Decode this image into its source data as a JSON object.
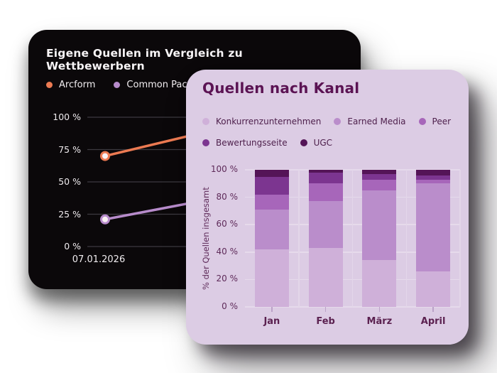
{
  "line_card": {
    "title": "Eigene Quellen im Vergleich zu Wettbewerbern",
    "x_axis_label": "07.01.2026",
    "background": "#0b080a",
    "text_color": "#f1edf0"
  },
  "bar_card": {
    "title": "Quellen nach Kanal",
    "y_axis_title": "% der Quellen insgesamt",
    "background": "#dccce4",
    "title_color": "#5b1353",
    "text_color": "#4c1e4a"
  },
  "chart_data": [
    {
      "type": "line",
      "title": "Eigene Quellen im Vergleich zu Wettbewerbern",
      "y_ticks": [
        "100 %",
        "75 %",
        "50 %",
        "25 %",
        "0 %"
      ],
      "x_tick_labels": [
        "07.01.2026"
      ],
      "ylim": [
        0,
        100
      ],
      "grid": true,
      "legend_position": "top",
      "series": [
        {
          "name": "Arcform",
          "color": "#ec7a52",
          "marker_fill": "#f8f0f2",
          "start_value_pct": 70,
          "value_at_overlap_pct": 85
        },
        {
          "name": "Common Pace",
          "color": "#b78bcb",
          "marker_fill": "#f8f0f2",
          "start_value_pct": 21,
          "value_at_overlap_pct": 33
        }
      ]
    },
    {
      "type": "bar",
      "stacked": true,
      "title": "Quellen nach Kanal",
      "categories": [
        "Jan",
        "Feb",
        "März",
        "April"
      ],
      "series": [
        {
          "name": "Konkurrenzunternehmen",
          "color": "#cfb0d9",
          "values": [
            42,
            43,
            34,
            26
          ]
        },
        {
          "name": "Earned Media",
          "color": "#ba8dcb",
          "values": [
            29,
            34,
            51,
            64
          ]
        },
        {
          "name": "Peer",
          "color": "#a766ba",
          "values": [
            11,
            13,
            8,
            3
          ]
        },
        {
          "name": "Bewertungsseite",
          "color": "#7c3590",
          "values": [
            13,
            8,
            4,
            3
          ]
        },
        {
          "name": "UGC",
          "color": "#541457",
          "values": [
            5,
            2,
            3,
            4
          ]
        }
      ],
      "ylabel": "% der Quellen insgesamt",
      "y_ticks": [
        "0 %",
        "20 %",
        "40 %",
        "60 %",
        "80 %",
        "100 %"
      ],
      "ylim": [
        0,
        100
      ],
      "grid": true,
      "legend_position": "top"
    }
  ]
}
